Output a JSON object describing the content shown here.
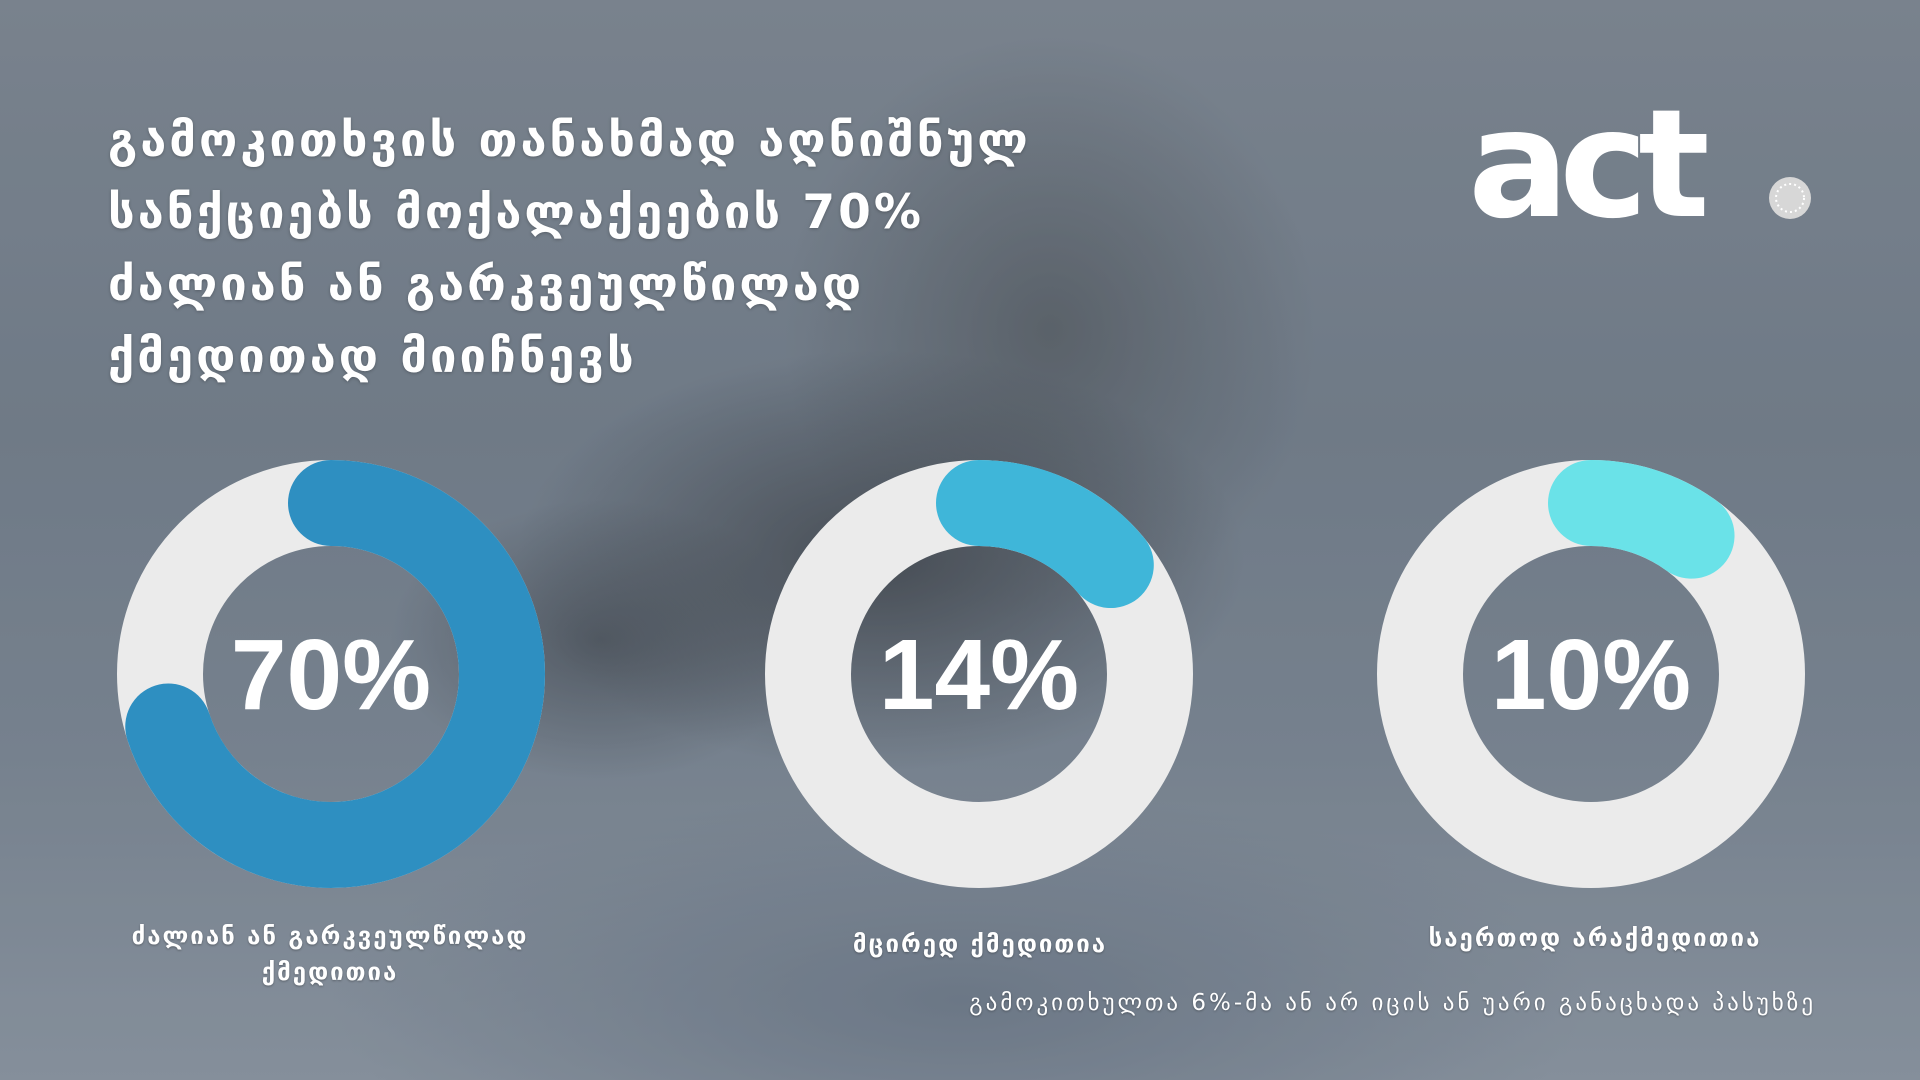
{
  "headline": [
    "გამოკითხვის თანახმად აღნიშნულ",
    "სანქციებს მოქალაქეების 70%",
    "ძალიან ან გარკვეულწილად",
    "ქმედითად მიიჩნევს"
  ],
  "logo": {
    "text": "act"
  },
  "chart_data": {
    "type": "donut",
    "series": [
      {
        "value": 70,
        "label": "70%",
        "category": "ძალიან ან გარკვეულწილად ქმედითია",
        "color": "#2e8fc1"
      },
      {
        "value": 14,
        "label": "14%",
        "category": "მცირედ ქმედითია",
        "color": "#3fb6d9"
      },
      {
        "value": 10,
        "label": "10%",
        "category": "საერთოდ არაქმედითია",
        "color": "#6ae2e8"
      }
    ],
    "track_color": "#ebebeb"
  },
  "labels": {
    "first_line1": "ძალიან ან გარკვეულწილად",
    "first_line2": "ქმედითია",
    "second": "მცირედ ქმედითია",
    "third": "საერთოდ არაქმედითია"
  },
  "note": "გამოკითხულთა 6%-მა ან არ იცის ან უარი განაცხადა პასუხზე"
}
